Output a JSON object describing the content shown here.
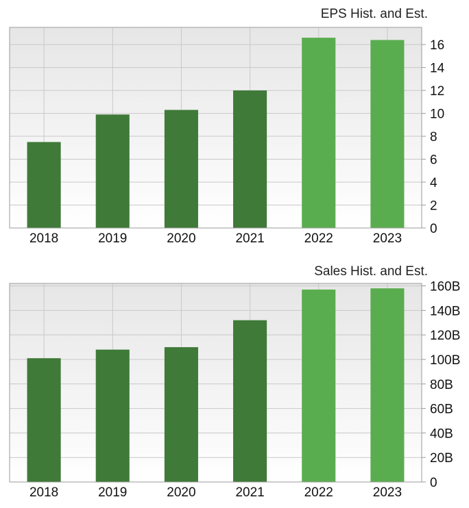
{
  "colors": {
    "historical_bar": "#3f7a38",
    "estimate_bar": "#5aad4e",
    "plot_bg_top": "#e6e6e6",
    "plot_bg_bottom": "#ffffff"
  },
  "chart_data": [
    {
      "type": "bar",
      "title": "EPS Hist. and Est.",
      "categories": [
        "2018",
        "2019",
        "2020",
        "2021",
        "2022",
        "2023"
      ],
      "values": [
        7.5,
        9.9,
        10.3,
        12.0,
        16.6,
        16.4
      ],
      "estimate": [
        false,
        false,
        false,
        false,
        true,
        true
      ],
      "ylim": [
        0,
        17.5
      ],
      "yticks": [
        0,
        2,
        4,
        6,
        8,
        10,
        12,
        14,
        16
      ],
      "ytick_labels": [
        "0",
        "2",
        "4",
        "6",
        "8",
        "10",
        "12",
        "14",
        "16"
      ],
      "grid": true,
      "yaxis_side": "right"
    },
    {
      "type": "bar",
      "title": "Sales Hist. and Est.",
      "categories": [
        "2018",
        "2019",
        "2020",
        "2021",
        "2022",
        "2023"
      ],
      "values": [
        101,
        108,
        110,
        132,
        157,
        158
      ],
      "estimate": [
        false,
        false,
        false,
        false,
        true,
        true
      ],
      "ylim": [
        0,
        162
      ],
      "yticks": [
        0,
        20,
        40,
        60,
        80,
        100,
        120,
        140,
        160
      ],
      "ytick_labels": [
        "0",
        "20B",
        "40B",
        "60B",
        "80B",
        "100B",
        "120B",
        "140B",
        "160B"
      ],
      "grid": true,
      "yaxis_side": "right"
    }
  ]
}
